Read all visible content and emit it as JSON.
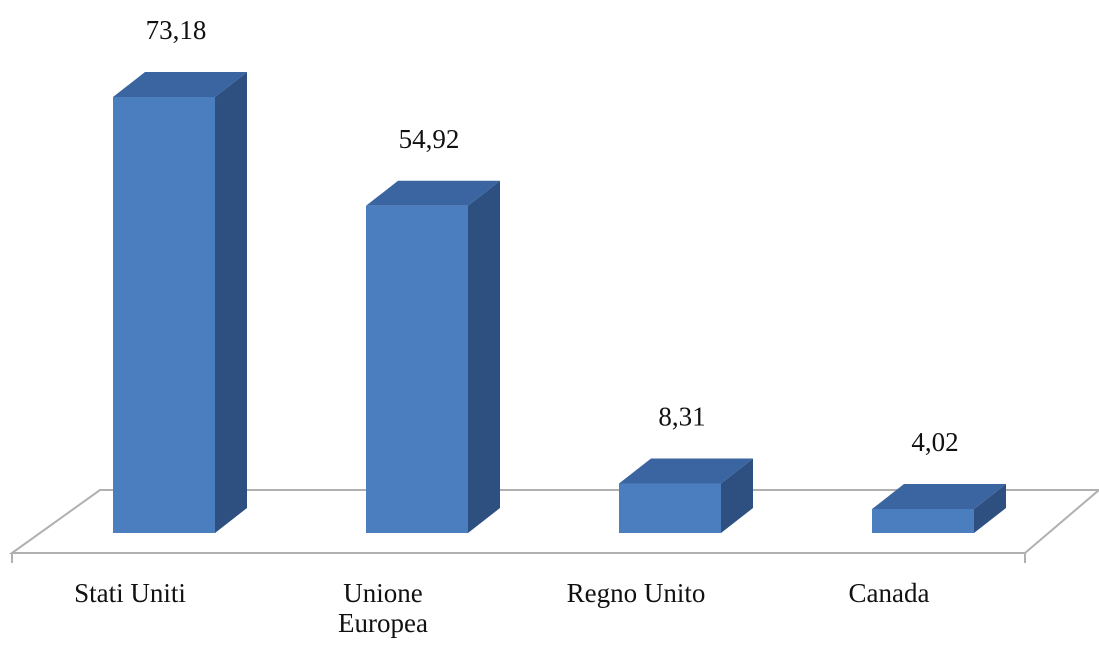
{
  "chart_data": {
    "type": "bar3d",
    "categories": [
      "Stati Uniti",
      "Unione Europea",
      "Regno Unito",
      "Canada"
    ],
    "values": [
      73.18,
      54.92,
      8.31,
      4.02
    ],
    "value_labels": [
      "73,18",
      "54,92",
      "8,31",
      "4,02"
    ],
    "color": "#4a7ebf"
  }
}
